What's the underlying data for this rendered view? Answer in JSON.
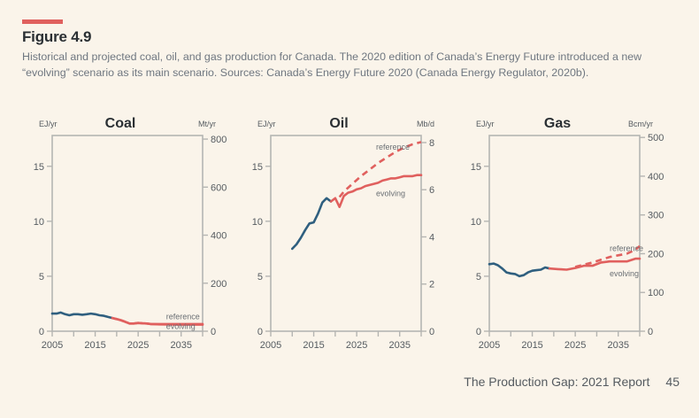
{
  "figure": {
    "label": "Figure 4.9",
    "caption": "Historical and projected coal, oil, and gas production for Canada. The 2020 edition of Canada’s Energy Future introduced a new “evolving” scenario as its main scenario. Sources: Canada’s Energy Future 2020 (Canada Energy Regulator, 2020b).",
    "accent_color": "#e0605e",
    "historical_color": "#2f5f7f",
    "projection_color": "#e0605e"
  },
  "footer": {
    "report": "The Production Gap: 2021 Report",
    "page": "45"
  },
  "chart_data": [
    {
      "type": "line",
      "title": "Coal",
      "left_unit": "EJ/yr",
      "right_unit": "Mt/yr",
      "xlim": [
        2005,
        2040
      ],
      "x_ticks": [
        2005,
        2010,
        2015,
        2020,
        2025,
        2030,
        2035,
        2040
      ],
      "x_tick_labels": [
        "2005",
        "2015",
        "2025",
        "2035"
      ],
      "ylim": [
        0,
        17.8
      ],
      "y_ticks": [
        0,
        5,
        10,
        15
      ],
      "right_ylim": [
        0,
        815
      ],
      "right_ticks": [
        0,
        200,
        400,
        600,
        800
      ],
      "series": [
        {
          "name": "historical",
          "style": "solid",
          "x": [
            2005,
            2006,
            2007,
            2008,
            2009,
            2010,
            2011,
            2012,
            2013,
            2014,
            2015,
            2016,
            2017,
            2018,
            2019
          ],
          "y": [
            1.6,
            1.6,
            1.7,
            1.55,
            1.45,
            1.55,
            1.55,
            1.5,
            1.55,
            1.6,
            1.55,
            1.45,
            1.4,
            1.3,
            1.2
          ]
        },
        {
          "name": "reference",
          "style": "solid",
          "x": [
            2019,
            2020,
            2021,
            2022,
            2023,
            2024,
            2025,
            2026,
            2027,
            2028,
            2030,
            2035,
            2040
          ],
          "y": [
            1.2,
            1.1,
            1.0,
            0.85,
            0.7,
            0.7,
            0.75,
            0.72,
            0.7,
            0.65,
            0.65,
            0.65,
            0.65
          ]
        },
        {
          "name": "evolving",
          "style": "solid",
          "x": [
            2019,
            2020,
            2021,
            2022,
            2023,
            2024,
            2025,
            2026,
            2027,
            2028,
            2030,
            2035,
            2040
          ],
          "y": [
            1.2,
            1.1,
            1.0,
            0.85,
            0.7,
            0.7,
            0.75,
            0.72,
            0.7,
            0.65,
            0.62,
            0.6,
            0.6
          ]
        }
      ],
      "annotations": [
        {
          "text": "reference",
          "x": 2031.5,
          "y": 1.1
        },
        {
          "text": "evolving",
          "x": 2031.5,
          "y": 0.2
        }
      ]
    },
    {
      "type": "line",
      "title": "Oil",
      "left_unit": "EJ/yr",
      "right_unit": "Mb/d",
      "xlim": [
        2005,
        2040
      ],
      "x_ticks": [
        2005,
        2010,
        2015,
        2020,
        2025,
        2030,
        2035,
        2040
      ],
      "x_tick_labels": [
        "2005",
        "2015",
        "2025",
        "2035"
      ],
      "ylim": [
        0,
        17.8
      ],
      "y_ticks": [
        0,
        5,
        10,
        15
      ],
      "right_ylim": [
        0,
        8.3
      ],
      "right_ticks": [
        0,
        2,
        4,
        6,
        8
      ],
      "series": [
        {
          "name": "historical",
          "style": "solid",
          "x": [
            2010,
            2011,
            2012,
            2013,
            2014,
            2015,
            2016,
            2017,
            2018,
            2019
          ],
          "y": [
            7.5,
            7.9,
            8.5,
            9.2,
            9.8,
            9.9,
            10.7,
            11.7,
            12.1,
            11.8
          ]
        },
        {
          "name": "evolving",
          "style": "solid",
          "x": [
            2019,
            2020,
            2021,
            2022,
            2023,
            2024,
            2025,
            2026,
            2027,
            2028,
            2029,
            2030,
            2031,
            2032,
            2033,
            2034,
            2035,
            2036,
            2037,
            2038,
            2039,
            2040
          ],
          "y": [
            11.8,
            12.1,
            11.3,
            12.3,
            12.6,
            12.7,
            12.9,
            13.0,
            13.2,
            13.3,
            13.4,
            13.5,
            13.7,
            13.8,
            13.9,
            13.9,
            14.0,
            14.1,
            14.1,
            14.1,
            14.2,
            14.2
          ]
        },
        {
          "name": "reference",
          "style": "dashed",
          "x": [
            2021,
            2022,
            2024,
            2026,
            2028,
            2030,
            2032,
            2034,
            2036,
            2038,
            2040
          ],
          "y": [
            12.2,
            12.7,
            13.4,
            14.1,
            14.7,
            15.3,
            15.8,
            16.3,
            16.7,
            17.0,
            17.2
          ]
        }
      ],
      "annotations": [
        {
          "text": "reference",
          "x": 2029.5,
          "y": 16.5
        },
        {
          "text": "evolving",
          "x": 2029.5,
          "y": 12.3
        }
      ]
    },
    {
      "type": "line",
      "title": "Gas",
      "left_unit": "EJ/yr",
      "right_unit": "Bcm/yr",
      "xlim": [
        2005,
        2040
      ],
      "x_ticks": [
        2005,
        2010,
        2015,
        2020,
        2025,
        2030,
        2035,
        2040
      ],
      "x_tick_labels": [
        "2005",
        "2015",
        "2025",
        "2035"
      ],
      "ylim": [
        0,
        17.8
      ],
      "y_ticks": [
        0,
        5,
        10,
        15
      ],
      "right_ylim": [
        0,
        505
      ],
      "right_ticks": [
        0,
        100,
        200,
        300,
        400,
        500
      ],
      "series": [
        {
          "name": "historical",
          "style": "solid",
          "x": [
            2005,
            2006,
            2007,
            2008,
            2009,
            2010,
            2011,
            2012,
            2013,
            2014,
            2015,
            2016,
            2017,
            2018,
            2019
          ],
          "y": [
            6.1,
            6.15,
            6.0,
            5.7,
            5.35,
            5.25,
            5.2,
            5.0,
            5.1,
            5.35,
            5.5,
            5.55,
            5.6,
            5.8,
            5.7
          ]
        },
        {
          "name": "evolving",
          "style": "solid",
          "x": [
            2019,
            2021,
            2023,
            2025,
            2027,
            2029,
            2031,
            2033,
            2035,
            2037,
            2039,
            2040
          ],
          "y": [
            5.7,
            5.65,
            5.6,
            5.75,
            5.95,
            5.95,
            6.25,
            6.35,
            6.35,
            6.35,
            6.6,
            6.6
          ]
        },
        {
          "name": "reference",
          "style": "dashed",
          "x": [
            2025,
            2027,
            2029,
            2031,
            2033,
            2035,
            2037,
            2039,
            2040
          ],
          "y": [
            5.85,
            6.05,
            6.25,
            6.5,
            6.75,
            6.9,
            7.05,
            7.4,
            7.75
          ]
        }
      ],
      "annotations": [
        {
          "text": "reference",
          "x": 2033,
          "y": 7.3
        },
        {
          "text": "evolving",
          "x": 2033,
          "y": 5.0
        }
      ]
    }
  ]
}
